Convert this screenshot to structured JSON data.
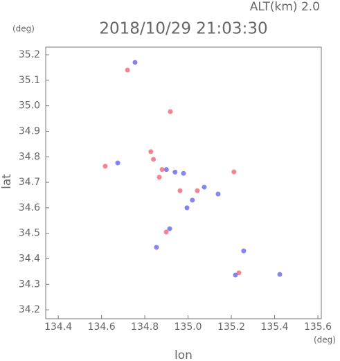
{
  "chart_data": {
    "type": "scatter",
    "title": "2018/10/29 21:03:30",
    "subtitle": "ALT(km) 2.0",
    "y_unit": "(deg)",
    "x_unit": "(deg)",
    "x_label": "lon",
    "y_label": "lat",
    "xlim": [
      134.342,
      135.616
    ],
    "ylim": [
      34.165,
      35.23
    ],
    "xticks": [
      134.4,
      134.6,
      134.8,
      {
        "value": 135,
        "label": "135.0"
      },
      135.2,
      135.4,
      135.6
    ],
    "yticks": [
      34.2,
      34.3,
      34.4,
      34.5,
      34.6,
      34.7,
      34.8,
      34.9,
      {
        "value": 35,
        "label": "35.0"
      },
      35.1,
      35.2
    ],
    "series": [
      {
        "color": "#ee7080",
        "x": [
          134.72,
          134.918,
          134.828,
          134.617,
          134.867,
          135.043,
          134.899,
          135.212,
          134.963,
          135.235,
          134.84,
          134.88
        ],
        "values": [
          35.14,
          34.977,
          34.82,
          34.763,
          34.72,
          34.667,
          34.505,
          34.741,
          34.667,
          34.345,
          34.79,
          34.75
        ]
      },
      {
        "color": "#7070ee",
        "x": [
          134.755,
          134.675,
          134.9,
          134.979,
          135.075,
          134.995,
          135.139,
          134.915,
          134.854,
          135.257,
          135.219,
          135.424,
          134.94,
          135.02
        ],
        "values": [
          35.17,
          34.776,
          34.75,
          34.735,
          34.681,
          34.6,
          34.654,
          34.518,
          34.445,
          34.431,
          34.336,
          34.339,
          34.74,
          34.63
        ]
      }
    ]
  }
}
